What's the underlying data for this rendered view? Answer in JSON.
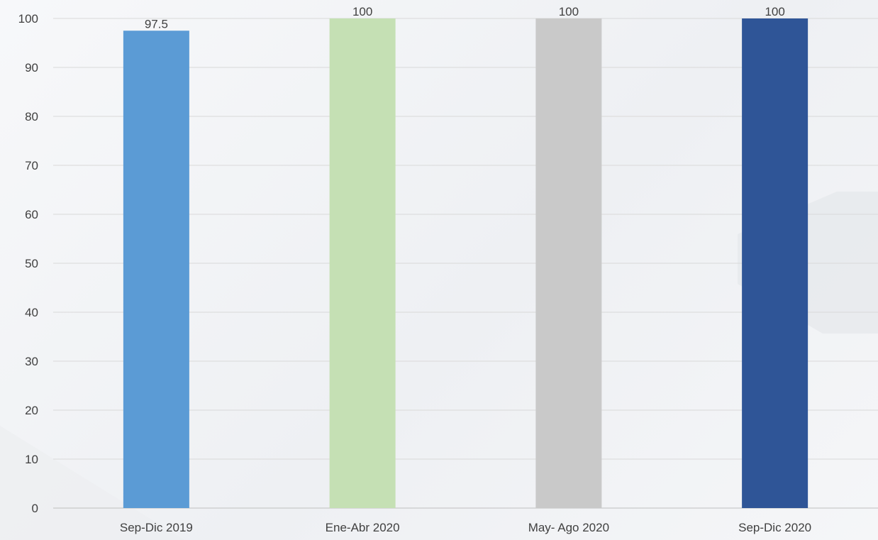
{
  "chart_data": {
    "type": "bar",
    "title": "",
    "xlabel": "",
    "ylabel": "",
    "ylim": [
      0,
      100
    ],
    "yticks": [
      0,
      10,
      20,
      30,
      40,
      50,
      60,
      70,
      80,
      90,
      100
    ],
    "grid": true,
    "legend": "none",
    "categories": [
      "Sep-Dic 2019",
      "Ene-Abr 2020",
      "May- Ago 2020",
      "Sep-Dic 2020"
    ],
    "values": [
      97.5,
      100,
      100,
      100
    ],
    "data_labels": [
      "97.5",
      "100",
      "100",
      "100"
    ],
    "colors": [
      "#5b9bd5",
      "#c5e0b4",
      "#c9c9c9",
      "#2f5597"
    ]
  },
  "style": {
    "gridline_color": "#d9d9d9",
    "axis_color": "#bfbfbf",
    "text_color": "#404040"
  }
}
